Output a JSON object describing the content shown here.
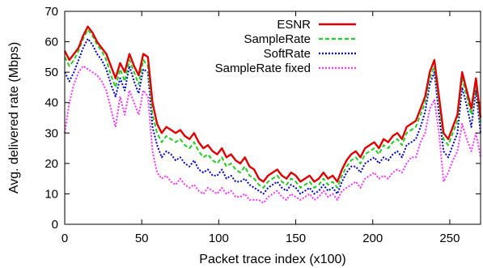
{
  "chart_data": {
    "type": "line",
    "title": "",
    "xlabel": "Packet trace index (x100)",
    "ylabel": "Avg. delivered rate (Mbps)",
    "xlim": [
      0,
      270
    ],
    "ylim": [
      0,
      70
    ],
    "xticks": [
      0,
      50,
      100,
      150,
      200,
      250
    ],
    "yticks": [
      0,
      10,
      20,
      30,
      40,
      50,
      60,
      70
    ],
    "grid": false,
    "legend_position": "top-right",
    "series": [
      {
        "name": "ESNR",
        "color": "#e00000",
        "style": "solid",
        "x": [
          0,
          3,
          6,
          9,
          12,
          15,
          18,
          21,
          24,
          27,
          30,
          33,
          36,
          39,
          42,
          45,
          48,
          51,
          54,
          57,
          60,
          63,
          66,
          69,
          72,
          75,
          78,
          81,
          84,
          87,
          90,
          93,
          96,
          99,
          102,
          105,
          108,
          111,
          114,
          117,
          120,
          123,
          126,
          129,
          132,
          135,
          138,
          141,
          144,
          147,
          150,
          153,
          156,
          159,
          162,
          165,
          168,
          171,
          174,
          177,
          180,
          183,
          186,
          189,
          192,
          195,
          198,
          201,
          204,
          207,
          210,
          213,
          216,
          219,
          222,
          225,
          228,
          231,
          234,
          237,
          240,
          243,
          246,
          249,
          252,
          255,
          258,
          261,
          264,
          267,
          270
        ],
        "values": [
          57,
          54,
          56,
          58,
          62,
          65,
          63,
          60,
          58,
          56,
          52,
          48,
          53,
          50,
          56,
          52,
          49,
          56,
          55,
          40,
          33,
          30,
          32,
          31,
          30,
          31,
          29,
          28,
          30,
          27,
          25,
          26,
          24,
          23,
          25,
          22,
          23,
          21,
          20,
          22,
          19,
          18,
          15,
          14,
          16,
          17,
          18,
          16,
          15,
          17,
          16,
          14,
          15,
          16,
          14,
          15,
          17,
          15,
          16,
          14,
          18,
          21,
          23,
          24,
          22,
          25,
          26,
          27,
          25,
          28,
          27,
          29,
          30,
          28,
          32,
          33,
          34,
          38,
          42,
          50,
          54,
          42,
          30,
          28,
          32,
          36,
          50,
          44,
          38,
          48,
          35
        ]
      },
      {
        "name": "SampleRate",
        "color": "#22cc22",
        "style": "dashed",
        "x": [
          0,
          3,
          6,
          9,
          12,
          15,
          18,
          21,
          24,
          27,
          30,
          33,
          36,
          39,
          42,
          45,
          48,
          51,
          54,
          57,
          60,
          63,
          66,
          69,
          72,
          75,
          78,
          81,
          84,
          87,
          90,
          93,
          96,
          99,
          102,
          105,
          108,
          111,
          114,
          117,
          120,
          123,
          126,
          129,
          132,
          135,
          138,
          141,
          144,
          147,
          150,
          153,
          156,
          159,
          162,
          165,
          168,
          171,
          174,
          177,
          180,
          183,
          186,
          189,
          192,
          195,
          198,
          201,
          204,
          207,
          210,
          213,
          216,
          219,
          222,
          225,
          228,
          231,
          234,
          237,
          240,
          243,
          246,
          249,
          252,
          255,
          258,
          261,
          264,
          267,
          270
        ],
        "values": [
          55,
          52,
          54,
          57,
          61,
          64,
          62,
          59,
          57,
          54,
          49,
          45,
          51,
          47,
          54,
          50,
          46,
          54,
          52,
          36,
          30,
          27,
          29,
          28,
          27,
          28,
          26,
          25,
          27,
          24,
          22,
          23,
          21,
          20,
          22,
          19,
          20,
          18,
          17,
          19,
          16,
          15,
          13,
          12,
          14,
          15,
          16,
          14,
          13,
          15,
          14,
          12,
          13,
          14,
          12,
          13,
          15,
          13,
          14,
          12,
          16,
          19,
          21,
          22,
          20,
          23,
          24,
          25,
          23,
          26,
          25,
          27,
          28,
          26,
          30,
          31,
          32,
          36,
          40,
          48,
          52,
          40,
          28,
          26,
          30,
          34,
          48,
          42,
          36,
          46,
          33
        ]
      },
      {
        "name": "SoftRate",
        "color": "#0000cc",
        "style": "dotted",
        "x": [
          0,
          3,
          6,
          9,
          12,
          15,
          18,
          21,
          24,
          27,
          30,
          33,
          36,
          39,
          42,
          45,
          48,
          51,
          54,
          57,
          60,
          63,
          66,
          69,
          72,
          75,
          78,
          81,
          84,
          87,
          90,
          93,
          96,
          99,
          102,
          105,
          108,
          111,
          114,
          117,
          120,
          123,
          126,
          129,
          132,
          135,
          138,
          141,
          144,
          147,
          150,
          153,
          156,
          159,
          162,
          165,
          168,
          171,
          174,
          177,
          180,
          183,
          186,
          189,
          192,
          195,
          198,
          201,
          204,
          207,
          210,
          213,
          216,
          219,
          222,
          225,
          228,
          231,
          234,
          237,
          240,
          243,
          246,
          249,
          252,
          255,
          258,
          261,
          264,
          267,
          270
        ],
        "values": [
          50,
          47,
          50,
          54,
          58,
          61,
          59,
          56,
          54,
          51,
          46,
          42,
          48,
          44,
          52,
          47,
          43,
          51,
          50,
          32,
          26,
          22,
          24,
          23,
          21,
          22,
          20,
          19,
          21,
          18,
          17,
          18,
          16,
          16,
          18,
          15,
          16,
          14,
          14,
          15,
          13,
          12,
          11,
          10,
          12,
          13,
          14,
          12,
          11,
          13,
          12,
          10,
          11,
          12,
          10,
          11,
          13,
          11,
          12,
          10,
          14,
          17,
          19,
          19,
          17,
          20,
          21,
          22,
          20,
          22,
          21,
          23,
          24,
          22,
          26,
          27,
          28,
          32,
          37,
          46,
          50,
          36,
          24,
          22,
          26,
          30,
          45,
          39,
          32,
          44,
          30
        ]
      },
      {
        "name": "SampleRate fixed",
        "color": "#ff33ff",
        "style": "dotted",
        "x": [
          0,
          3,
          6,
          9,
          12,
          15,
          18,
          21,
          24,
          27,
          30,
          33,
          36,
          39,
          42,
          45,
          48,
          51,
          54,
          57,
          60,
          63,
          66,
          69,
          72,
          75,
          78,
          81,
          84,
          87,
          90,
          93,
          96,
          99,
          102,
          105,
          108,
          111,
          114,
          117,
          120,
          123,
          126,
          129,
          132,
          135,
          138,
          141,
          144,
          147,
          150,
          153,
          156,
          159,
          162,
          165,
          168,
          171,
          174,
          177,
          180,
          183,
          186,
          189,
          192,
          195,
          198,
          201,
          204,
          207,
          210,
          213,
          216,
          219,
          222,
          225,
          228,
          231,
          234,
          237,
          240,
          243,
          246,
          249,
          252,
          255,
          258,
          261,
          264,
          267,
          270
        ],
        "values": [
          30,
          40,
          46,
          50,
          52,
          51,
          50,
          49,
          47,
          44,
          38,
          32,
          42,
          36,
          44,
          40,
          36,
          44,
          42,
          24,
          17,
          15,
          16,
          14,
          13,
          15,
          13,
          12,
          13,
          11,
          10,
          12,
          11,
          10,
          12,
          10,
          11,
          9,
          9,
          10,
          8,
          8,
          8,
          7,
          9,
          10,
          11,
          9,
          8,
          10,
          9,
          8,
          9,
          10,
          8,
          9,
          11,
          9,
          10,
          8,
          11,
          12,
          13,
          14,
          12,
          15,
          16,
          17,
          15,
          16,
          15,
          17,
          18,
          17,
          20,
          22,
          22,
          27,
          30,
          38,
          41,
          30,
          14,
          17,
          21,
          24,
          33,
          28,
          24,
          30,
          22
        ]
      }
    ]
  }
}
